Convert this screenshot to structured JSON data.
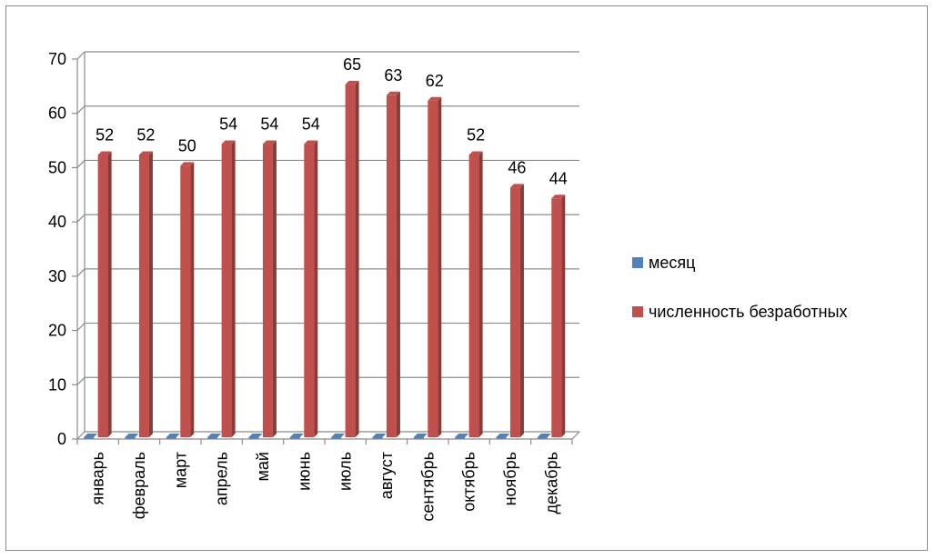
{
  "chart_data": {
    "type": "bar",
    "categories": [
      "январь",
      "февраль",
      "март",
      "апрель",
      "май",
      "июнь",
      "июль",
      "август",
      "сентябрь",
      "октябрь",
      "ноябрь",
      "декабрь"
    ],
    "series": [
      {
        "name": "месяц",
        "values": [
          0,
          0,
          0,
          0,
          0,
          0,
          0,
          0,
          0,
          0,
          0,
          0
        ],
        "color": "#4f81bd"
      },
      {
        "name": "численность безработных",
        "values": [
          52,
          52,
          50,
          54,
          54,
          54,
          65,
          63,
          62,
          52,
          46,
          44
        ],
        "color": "#c0504d"
      }
    ],
    "ylim": [
      0,
      70
    ],
    "yticks": [
      0,
      10,
      20,
      30,
      40,
      50,
      60,
      70
    ],
    "grid": true,
    "legend": "right",
    "data_labels_series": 1
  }
}
